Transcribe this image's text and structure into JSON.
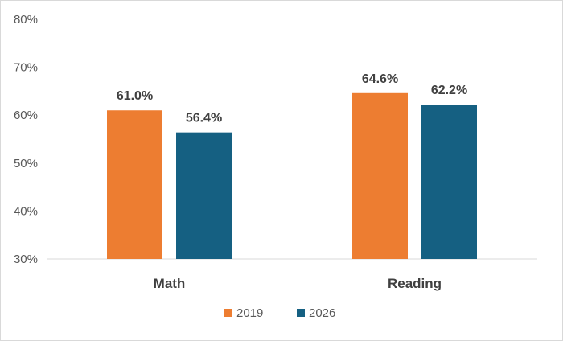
{
  "chart_data": {
    "type": "bar",
    "categories": [
      "Math",
      "Reading"
    ],
    "series": [
      {
        "name": "2019",
        "values": [
          61.0,
          64.6
        ],
        "labels": [
          "61.0%",
          "64.6%"
        ],
        "color": "#ED7D31"
      },
      {
        "name": "2026",
        "values": [
          56.4,
          62.2
        ],
        "labels": [
          "56.4%",
          "62.2%"
        ],
        "color": "#156082"
      }
    ],
    "ylim": [
      30,
      80
    ],
    "yticks": [
      30,
      40,
      50,
      60,
      70,
      80
    ],
    "ytick_labels": [
      "30%",
      "40%",
      "50%",
      "60%",
      "70%",
      "80%"
    ],
    "grid": false,
    "legend_position": "bottom"
  }
}
